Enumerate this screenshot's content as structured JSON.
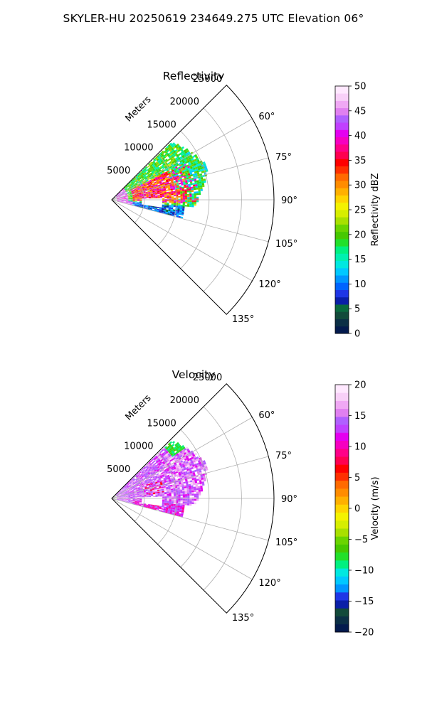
{
  "figure": {
    "title": "SKYLER-HU  20250619  234649.275 UTC Elevation 06°"
  },
  "chart_data": [
    {
      "type": "polar-sector",
      "title": "Reflectivity",
      "rlabel": "Meters",
      "r_ticks": [
        5000,
        10000,
        15000,
        20000,
        25000
      ],
      "r_max": 25000,
      "theta_ticks_deg": [
        45,
        60,
        75,
        90,
        105,
        120,
        135
      ],
      "theta_tick_labels": [
        "",
        "60°",
        "75°",
        "90°",
        "105°",
        "120°",
        "135°"
      ],
      "theta_range_deg": [
        45,
        135
      ],
      "grid": true,
      "colorbar": {
        "label": "Reflectivity dBZ",
        "min": 0,
        "max": 50,
        "ticks": [
          0,
          5,
          10,
          15,
          20,
          25,
          30,
          35,
          40,
          45,
          50
        ],
        "colors": [
          "#031a4d",
          "#0b2f45",
          "#124a3a",
          "#0a6a3e",
          "#0a1fa8",
          "#1e36e6",
          "#0064ff",
          "#0096ff",
          "#00c8ff",
          "#00e8e0",
          "#00f0b0",
          "#00f080",
          "#22e02a",
          "#46c800",
          "#6ad400",
          "#a8e000",
          "#d6ee00",
          "#f4f200",
          "#ffd400",
          "#ffb000",
          "#ff8c00",
          "#ff6a00",
          "#ff3000",
          "#ff0000",
          "#ff0050",
          "#ff0088",
          "#f600c0",
          "#e400f0",
          "#c040ff",
          "#b060ff",
          "#e080f0",
          "#f0a8f4",
          "#f8d0f8",
          "#ffe8ff"
        ]
      },
      "echo_description": "weak to strong echoes concentrated within about 15 km, azimuths 50°–100°"
    },
    {
      "type": "polar-sector",
      "title": "Velocity",
      "rlabel": "Meters",
      "r_ticks": [
        5000,
        10000,
        15000,
        20000,
        25000
      ],
      "r_max": 25000,
      "theta_ticks_deg": [
        45,
        60,
        75,
        90,
        105,
        120,
        135
      ],
      "theta_tick_labels": [
        "",
        "60°",
        "75°",
        "90°",
        "105°",
        "120°",
        "135°"
      ],
      "theta_range_deg": [
        45,
        135
      ],
      "grid": true,
      "colorbar": {
        "label": "Velocity (m/s)",
        "min": -20,
        "max": 20,
        "ticks": [
          -20,
          -15,
          -10,
          -5,
          0,
          5,
          10,
          15,
          20
        ],
        "colors": [
          "#031a4d",
          "#0b2f45",
          "#124a3a",
          "#0a1fa8",
          "#1e36e6",
          "#0096ff",
          "#00c8ff",
          "#00e8e0",
          "#00f080",
          "#22e02a",
          "#46c800",
          "#6ad400",
          "#a8e000",
          "#d6ee00",
          "#f4f200",
          "#ffd400",
          "#ffb000",
          "#ff8c00",
          "#ff6a00",
          "#ff3000",
          "#ff0000",
          "#ff0050",
          "#ff0088",
          "#f600c0",
          "#e400f0",
          "#c040ff",
          "#b060ff",
          "#e080f0",
          "#f0a8f4",
          "#f8d0f8",
          "#ffe8ff"
        ]
      }
    }
  ]
}
